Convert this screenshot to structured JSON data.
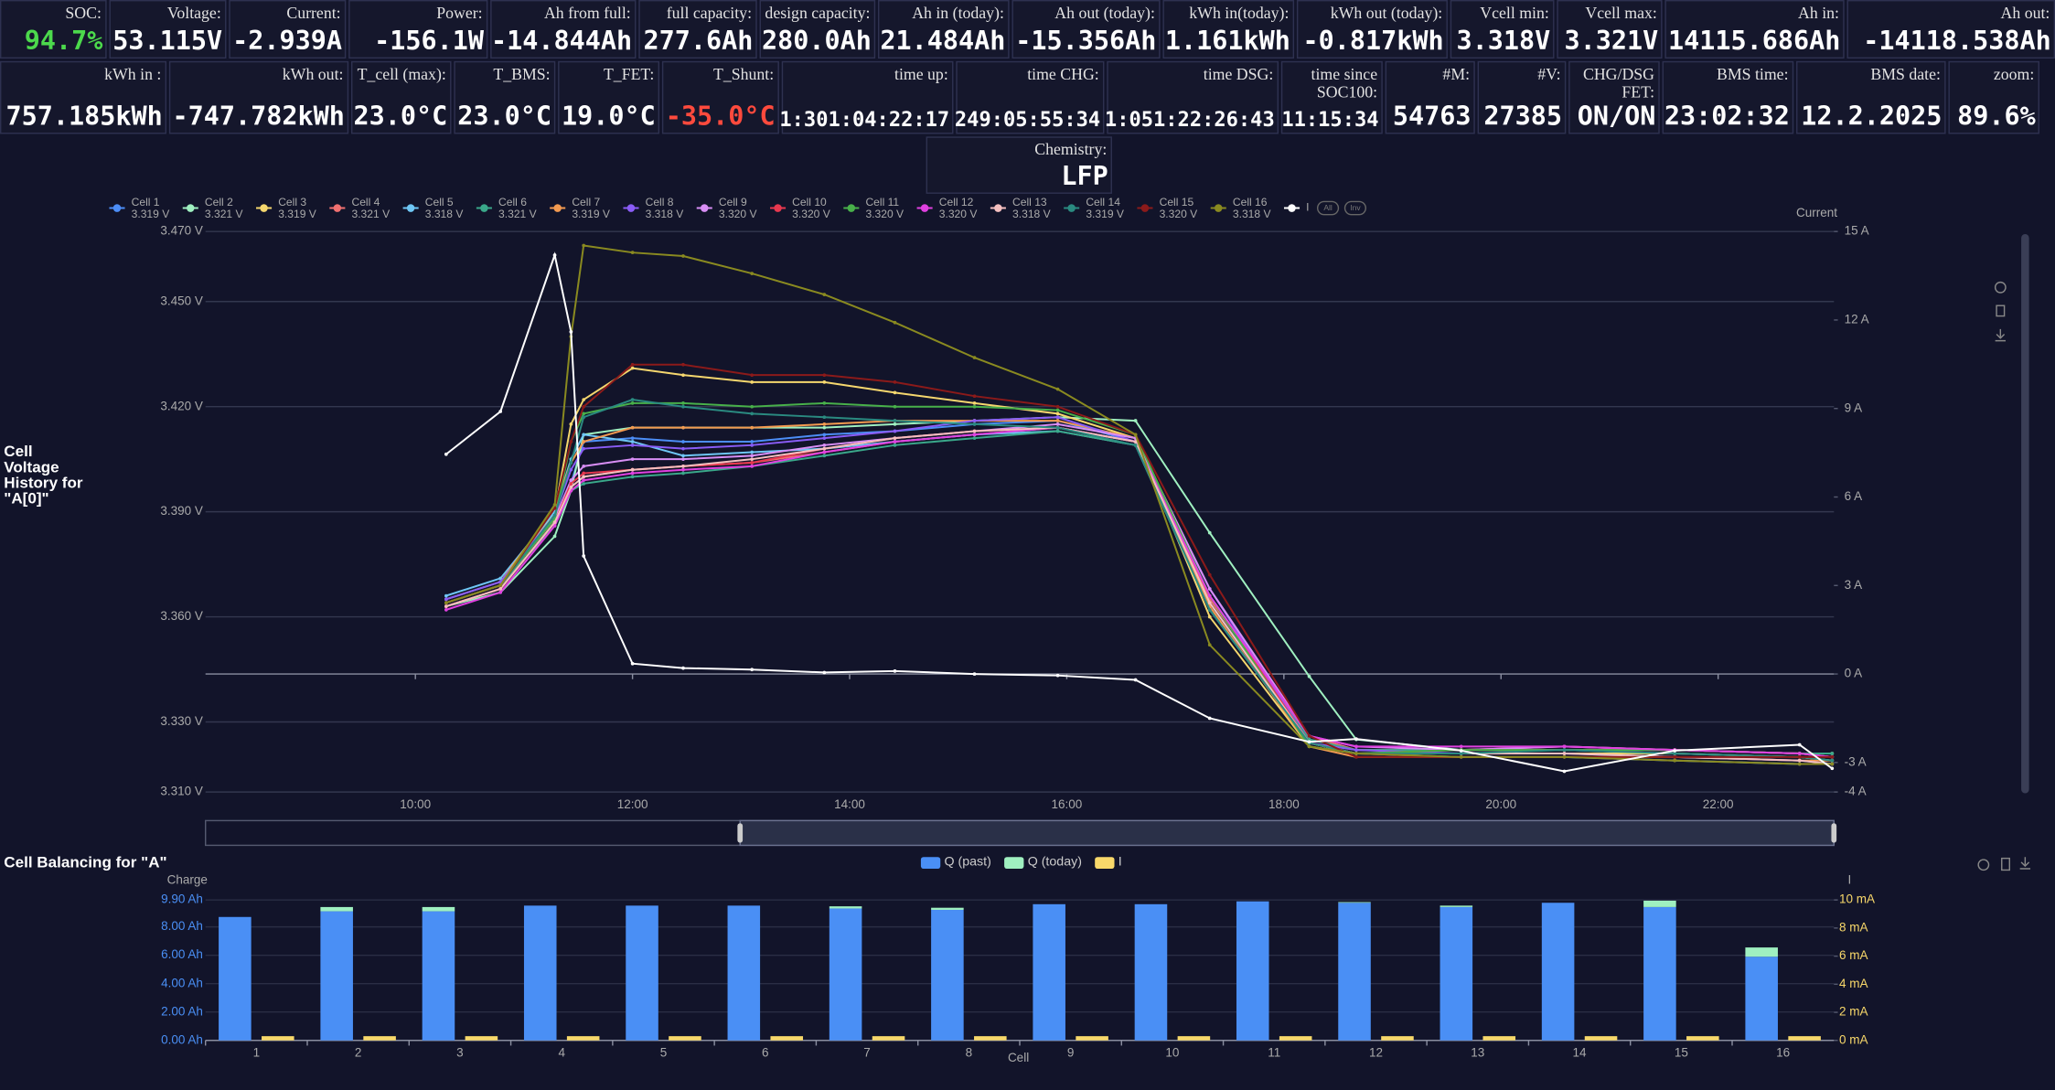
{
  "tiles_row1": [
    {
      "label": "SOC:",
      "value": "94.7%",
      "color": "#4cd94c"
    },
    {
      "label": "Voltage:",
      "value": "53.115V"
    },
    {
      "label": "Current:",
      "value": "-2.939A"
    },
    {
      "label": "Power:",
      "value": "-156.1W"
    },
    {
      "label": "Ah from full:",
      "value": "-14.844Ah"
    },
    {
      "label": "full capacity:",
      "value": "277.6Ah"
    },
    {
      "label": "design capacity:",
      "value": "280.0Ah"
    },
    {
      "label": "Ah in (today):",
      "value": "21.484Ah"
    },
    {
      "label": "Ah out (today):",
      "value": "-15.356Ah"
    },
    {
      "label": "kWh in(today):",
      "value": "1.161kWh"
    },
    {
      "label": "kWh out (today):",
      "value": "-0.817kWh"
    },
    {
      "label": "Vcell min:",
      "value": "3.318V"
    },
    {
      "label": "Vcell max:",
      "value": "3.321V"
    },
    {
      "label": "Ah in:",
      "value": "14115.686Ah"
    },
    {
      "label": "Ah out:",
      "value": "-14118.538Ah"
    }
  ],
  "tiles_row2": [
    {
      "label": "kWh in :",
      "value": "757.185kWh"
    },
    {
      "label": "kWh out:",
      "value": "-747.782kWh"
    },
    {
      "label": "T_cell (max):",
      "value": "23.0°C"
    },
    {
      "label": "T_BMS:",
      "value": "23.0°C"
    },
    {
      "label": "T_FET:",
      "value": "19.0°C"
    },
    {
      "label": "T_Shunt:",
      "value": "-35.0°C",
      "color": "#ff4a3d"
    },
    {
      "label": "time up:",
      "value": "1:301:04:22:17"
    },
    {
      "label": "time CHG:",
      "value": "249:05:55:34"
    },
    {
      "label": "time DSG:",
      "value": "1:051:22:26:43"
    },
    {
      "label": "time since SOC100:",
      "value": "11:15:34"
    },
    {
      "label": "#M:",
      "value": "54763"
    },
    {
      "label": "#V:",
      "value": "27385"
    },
    {
      "label": "CHG/DSG FET:",
      "value": "ON/ON"
    },
    {
      "label": "BMS time:",
      "value": "23:02:32"
    },
    {
      "label": "BMS date:",
      "value": "12.2.2025"
    },
    {
      "label": "zoom:",
      "value": "89.6%"
    }
  ],
  "chemistry": {
    "label": "Chemistry:",
    "value": "LFP"
  },
  "chart_data": [
    {
      "type": "line",
      "title": "Cell Voltage History  for \"A[0]\"",
      "y2_label": "Current",
      "grid": true,
      "legend_buttons": [
        "All",
        "Inv"
      ],
      "x": [
        "10:17",
        "10:47",
        "11:17",
        "11:26",
        "11:33",
        "12:00",
        "12:28",
        "13:06",
        "13:46",
        "14:25",
        "15:09",
        "15:55",
        "16:38",
        "17:19",
        "18:14",
        "18:40",
        "19:38",
        "20:35",
        "21:36",
        "22:45",
        "23:03"
      ],
      "xlim": [
        "08:04",
        "23:04"
      ],
      "xticks": [
        "10:00",
        "12:00",
        "14:00",
        "16:00",
        "18:00",
        "20:00",
        "22:00"
      ],
      "ylim": [
        3.31,
        3.47
      ],
      "yticks": [
        {
          "value": 3.31,
          "label": "3.310 V"
        },
        {
          "value": 3.33,
          "label": "3.330 V"
        },
        {
          "value": 3.36,
          "label": "3.360 V"
        },
        {
          "value": 3.39,
          "label": "3.390 V"
        },
        {
          "value": 3.42,
          "label": "3.420 V"
        },
        {
          "value": 3.45,
          "label": "3.450 V"
        },
        {
          "value": 3.47,
          "label": "3.470 V"
        }
      ],
      "y2lim": [
        -4,
        15
      ],
      "y2ticks": [
        {
          "value": -4,
          "label": "-4 A"
        },
        {
          "value": -3,
          "label": "-3 A"
        },
        {
          "value": 0,
          "label": "0 A"
        },
        {
          "value": 3,
          "label": "3 A"
        },
        {
          "value": 6,
          "label": "6 A"
        },
        {
          "value": 9,
          "label": "9 A"
        },
        {
          "value": 12,
          "label": "12 A"
        },
        {
          "value": 15,
          "label": "15 A"
        }
      ],
      "series": [
        {
          "name": "Cell 1",
          "legend_value": "3.319 V",
          "color": "#4c8df6",
          "values": [
            3.365,
            3.37,
            3.388,
            3.398,
            3.41,
            3.411,
            3.41,
            3.41,
            3.412,
            3.413,
            3.415,
            3.416,
            3.41,
            3.366,
            3.325,
            3.322,
            3.322,
            3.322,
            3.321,
            3.32,
            3.319
          ]
        },
        {
          "name": "Cell 2",
          "legend_value": "3.321 V",
          "color": "#9ff0c0",
          "values": [
            3.363,
            3.367,
            3.383,
            3.396,
            3.412,
            3.414,
            3.414,
            3.414,
            3.414,
            3.415,
            3.416,
            3.417,
            3.416,
            3.384,
            3.343,
            3.325,
            3.322,
            3.322,
            3.322,
            3.321,
            3.321
          ]
        },
        {
          "name": "Cell 3",
          "legend_value": "3.319 V",
          "color": "#f5d76e",
          "values": [
            3.364,
            3.369,
            3.39,
            3.415,
            3.422,
            3.431,
            3.429,
            3.427,
            3.427,
            3.424,
            3.421,
            3.418,
            3.411,
            3.36,
            3.323,
            3.321,
            3.321,
            3.321,
            3.321,
            3.32,
            3.319
          ]
        },
        {
          "name": "Cell 4",
          "legend_value": "3.321 V",
          "color": "#f07070",
          "values": [
            3.363,
            3.368,
            3.387,
            3.397,
            3.4,
            3.402,
            3.403,
            3.404,
            3.407,
            3.41,
            3.412,
            3.414,
            3.41,
            3.365,
            3.326,
            3.322,
            3.322,
            3.323,
            3.322,
            3.321,
            3.321
          ]
        },
        {
          "name": "Cell 5",
          "legend_value": "3.318 V",
          "color": "#6ec6f5",
          "values": [
            3.366,
            3.371,
            3.39,
            3.405,
            3.412,
            3.41,
            3.406,
            3.407,
            3.408,
            3.41,
            3.412,
            3.413,
            3.409,
            3.362,
            3.324,
            3.321,
            3.32,
            3.32,
            3.319,
            3.318,
            3.318
          ]
        },
        {
          "name": "Cell 6",
          "legend_value": "3.321 V",
          "color": "#3aa88a",
          "values": [
            3.364,
            3.369,
            3.386,
            3.396,
            3.398,
            3.4,
            3.401,
            3.403,
            3.406,
            3.409,
            3.411,
            3.413,
            3.409,
            3.364,
            3.325,
            3.322,
            3.322,
            3.322,
            3.322,
            3.321,
            3.321
          ]
        },
        {
          "name": "Cell 7",
          "legend_value": "3.319 V",
          "color": "#f39a50",
          "values": [
            3.365,
            3.37,
            3.391,
            3.404,
            3.41,
            3.414,
            3.414,
            3.414,
            3.415,
            3.416,
            3.416,
            3.416,
            3.411,
            3.363,
            3.323,
            3.32,
            3.32,
            3.32,
            3.32,
            3.319,
            3.319
          ]
        },
        {
          "name": "Cell 8",
          "legend_value": "3.318 V",
          "color": "#8a5cf6",
          "values": [
            3.365,
            3.37,
            3.389,
            3.402,
            3.408,
            3.409,
            3.408,
            3.409,
            3.411,
            3.413,
            3.416,
            3.417,
            3.41,
            3.368,
            3.324,
            3.322,
            3.321,
            3.321,
            3.32,
            3.319,
            3.318
          ]
        },
        {
          "name": "Cell 9",
          "legend_value": "3.320 V",
          "color": "#d88ef5",
          "values": [
            3.364,
            3.369,
            3.388,
            3.399,
            3.403,
            3.405,
            3.405,
            3.406,
            3.409,
            3.411,
            3.413,
            3.415,
            3.411,
            3.368,
            3.326,
            3.323,
            3.322,
            3.323,
            3.322,
            3.321,
            3.32
          ]
        },
        {
          "name": "Cell 10",
          "legend_value": "3.320 V",
          "color": "#e8384f",
          "values": [
            3.363,
            3.368,
            3.387,
            3.398,
            3.401,
            3.402,
            3.403,
            3.404,
            3.408,
            3.411,
            3.413,
            3.414,
            3.41,
            3.366,
            3.324,
            3.321,
            3.322,
            3.322,
            3.322,
            3.321,
            3.32
          ]
        },
        {
          "name": "Cell 11",
          "legend_value": "3.320 V",
          "color": "#48b04a",
          "values": [
            3.364,
            3.369,
            3.388,
            3.41,
            3.418,
            3.421,
            3.421,
            3.42,
            3.421,
            3.42,
            3.42,
            3.419,
            3.412,
            3.366,
            3.323,
            3.321,
            3.322,
            3.322,
            3.322,
            3.321,
            3.32
          ]
        },
        {
          "name": "Cell 12",
          "legend_value": "3.320 V",
          "color": "#e040e0",
          "values": [
            3.362,
            3.367,
            3.386,
            3.396,
            3.399,
            3.401,
            3.402,
            3.403,
            3.407,
            3.41,
            3.412,
            3.414,
            3.41,
            3.366,
            3.326,
            3.323,
            3.323,
            3.323,
            3.322,
            3.321,
            3.32
          ]
        },
        {
          "name": "Cell 13",
          "legend_value": "3.318 V",
          "color": "#f5c0c0",
          "values": [
            3.363,
            3.368,
            3.387,
            3.397,
            3.4,
            3.402,
            3.403,
            3.405,
            3.408,
            3.411,
            3.413,
            3.414,
            3.41,
            3.364,
            3.324,
            3.321,
            3.321,
            3.321,
            3.32,
            3.319,
            3.318
          ]
        },
        {
          "name": "Cell 14",
          "legend_value": "3.319 V",
          "color": "#2a8a80",
          "values": [
            3.364,
            3.369,
            3.389,
            3.404,
            3.417,
            3.422,
            3.42,
            3.418,
            3.417,
            3.416,
            3.415,
            3.414,
            3.409,
            3.362,
            3.324,
            3.321,
            3.321,
            3.322,
            3.321,
            3.32,
            3.319
          ]
        },
        {
          "name": "Cell 15",
          "legend_value": "3.320 V",
          "color": "#8b1a1a",
          "values": [
            3.364,
            3.369,
            3.391,
            3.41,
            3.42,
            3.432,
            3.432,
            3.429,
            3.429,
            3.427,
            3.423,
            3.42,
            3.412,
            3.372,
            3.326,
            3.32,
            3.32,
            3.32,
            3.32,
            3.32,
            3.32
          ]
        },
        {
          "name": "Cell 16",
          "legend_value": "3.318 V",
          "color": "#8a8a20",
          "values": [
            3.364,
            3.369,
            3.392,
            3.44,
            3.466,
            3.464,
            3.463,
            3.458,
            3.452,
            3.444,
            3.434,
            3.425,
            3.412,
            3.352,
            3.323,
            3.321,
            3.32,
            3.32,
            3.319,
            3.318,
            3.318
          ]
        },
        {
          "name": "I",
          "color": "#ffffff",
          "axis": "y2",
          "values": [
            7.45,
            8.9,
            14.2,
            11.6,
            4.0,
            0.35,
            0.2,
            0.15,
            0.05,
            0.1,
            0,
            -0.05,
            -0.2,
            -1.5,
            -2.3,
            -2.2,
            -2.6,
            -3.3,
            -2.6,
            -2.4,
            -3.2
          ]
        }
      ]
    },
    {
      "type": "bar",
      "title": "Cell Balancing for \"A\"",
      "x_label": "Cell",
      "y_label": "Charge",
      "y2_label": "I",
      "categories": [
        "1",
        "2",
        "3",
        "4",
        "5",
        "6",
        "7",
        "8",
        "9",
        "10",
        "11",
        "12",
        "13",
        "14",
        "15",
        "16"
      ],
      "ylim": [
        0,
        9.9
      ],
      "yticks": [
        {
          "value": 0,
          "label": "0.00 Ah"
        },
        {
          "value": 2,
          "label": "2.00 Ah"
        },
        {
          "value": 4,
          "label": "4.00 Ah"
        },
        {
          "value": 6,
          "label": "6.00 Ah"
        },
        {
          "value": 8,
          "label": "8.00 Ah"
        },
        {
          "value": 9.9,
          "label": "9.90 Ah"
        }
      ],
      "y2lim": [
        0,
        10
      ],
      "y2ticks": [
        {
          "value": 0,
          "label": "0 mA"
        },
        {
          "value": 2,
          "label": "2 mA"
        },
        {
          "value": 4,
          "label": "4 mA"
        },
        {
          "value": 6,
          "label": "6 mA"
        },
        {
          "value": 8,
          "label": "8 mA"
        },
        {
          "value": 10,
          "label": "10 mA"
        }
      ],
      "series": [
        {
          "name": "Q (past)",
          "color": "#4a8ff5",
          "stack": "q",
          "values": [
            8.7,
            9.1,
            9.1,
            9.5,
            9.5,
            9.5,
            9.3,
            9.2,
            9.6,
            9.6,
            9.8,
            9.7,
            9.4,
            9.7,
            9.4,
            5.9
          ]
        },
        {
          "name": "Q (today)",
          "color": "#9ff0c0",
          "stack": "q",
          "values": [
            0,
            0.3,
            0.3,
            0,
            0,
            0,
            0.15,
            0.15,
            0,
            0,
            0,
            0.05,
            0.1,
            0,
            0.45,
            0.65
          ]
        },
        {
          "name": "I",
          "color": "#f8d86a",
          "axis": "y2",
          "values": [
            0.3,
            0.3,
            0.3,
            0.3,
            0.3,
            0.3,
            0.3,
            0.3,
            0.3,
            0.3,
            0.3,
            0.3,
            0.3,
            0.3,
            0.3,
            0.3
          ]
        }
      ]
    }
  ]
}
